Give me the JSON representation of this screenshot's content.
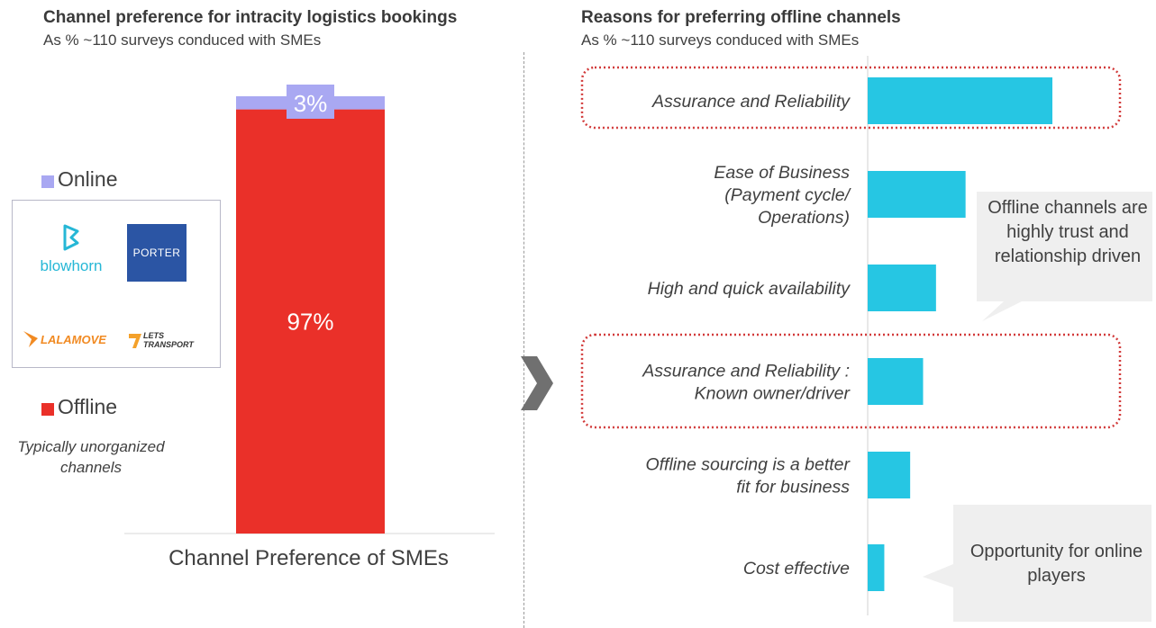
{
  "left_panel": {
    "title": "Channel preference for intracity logistics bookings",
    "subtitle": "As % ~110 surveys conduced with SMEs",
    "legend": {
      "online_label": "Online",
      "offline_label": "Offline",
      "offline_note": "Typically unorganized channels"
    },
    "logos": [
      "blowhorn",
      "PORTER",
      "LALAMOVE",
      "LETS TRANSPORT"
    ],
    "colors": {
      "online": "#a9a8f2",
      "offline": "#ea3029"
    }
  },
  "right_panel": {
    "title": "Reasons for preferring offline channels",
    "subtitle": "As % ~110 surveys conduced with SMEs",
    "callout_top": "Offline channels are highly trust and relationship driven",
    "callout_bottom": "Opportunity for online players",
    "bar_color": "#26c6e3",
    "highlight_color": "#d23b3b"
  },
  "chart_data": [
    {
      "type": "bar",
      "stacked": true,
      "categories": [
        "Channel Preference of SMEs"
      ],
      "series": [
        {
          "name": "Offline",
          "values": [
            97
          ],
          "label": "97%"
        },
        {
          "name": "Online",
          "values": [
            3
          ],
          "label": "3%"
        }
      ],
      "ylim": [
        0,
        100
      ]
    },
    {
      "type": "bar",
      "orientation": "horizontal",
      "categories": [
        "Assurance and Reliability",
        "Ease of Business (Payment cycle/ Operations)",
        "High and quick availability",
        "Assurance and Reliability : Known owner/driver",
        "Offline sourcing is a better fit for business",
        "Cost effective"
      ],
      "category_lines": [
        [
          "Assurance and Reliability"
        ],
        [
          "Ease of Business",
          "(Payment cycle/",
          "Operations)"
        ],
        [
          "High and quick availability"
        ],
        [
          "Assurance and Reliability :",
          "Known owner/driver"
        ],
        [
          "Offline sourcing is a better",
          "fit for business"
        ],
        [
          "Cost effective"
        ]
      ],
      "values": [
        100,
        53,
        37,
        30,
        23,
        9
      ],
      "highlighted": [
        0,
        3
      ],
      "xlim": [
        0,
        100
      ]
    }
  ]
}
